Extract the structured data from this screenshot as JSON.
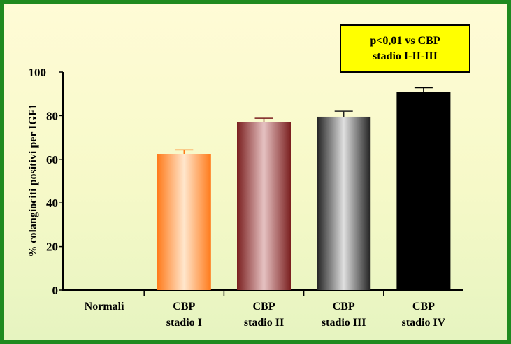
{
  "chart_data": {
    "type": "bar",
    "categories": [
      [
        "Normali"
      ],
      [
        "CBP",
        "stadio I"
      ],
      [
        "CBP",
        "stadio II"
      ],
      [
        "CBP",
        "stadio III"
      ],
      [
        "CBP",
        "stadio IV"
      ]
    ],
    "values": [
      0,
      62.5,
      77,
      79.5,
      91
    ],
    "errors": [
      0,
      1.8,
      1.8,
      2.5,
      1.8
    ],
    "bar_colors": [
      [
        "#2e8b3a",
        "#b8e0b0",
        "#2e8b3a"
      ],
      [
        "#ff7a1a",
        "#ffe6cc",
        "#ff7a1a"
      ],
      [
        "#7a1f1f",
        "#e6c2c2",
        "#7a1f1f"
      ],
      [
        "#222222",
        "#e0e0e0",
        "#222222"
      ],
      [
        "#000000",
        "#000000",
        "#000000"
      ]
    ],
    "ylabel": "% colangiociti positivi per IGF1",
    "ylim": [
      0,
      100
    ],
    "yticks": [
      0,
      20,
      40,
      60,
      80,
      100
    ],
    "annotation": [
      "p<0,01 vs CBP",
      "stadio I-II-III"
    ],
    "grid": false
  },
  "colors": {
    "frame_border": "#1f8a1f",
    "annotation_fill": "#ffff00"
  }
}
